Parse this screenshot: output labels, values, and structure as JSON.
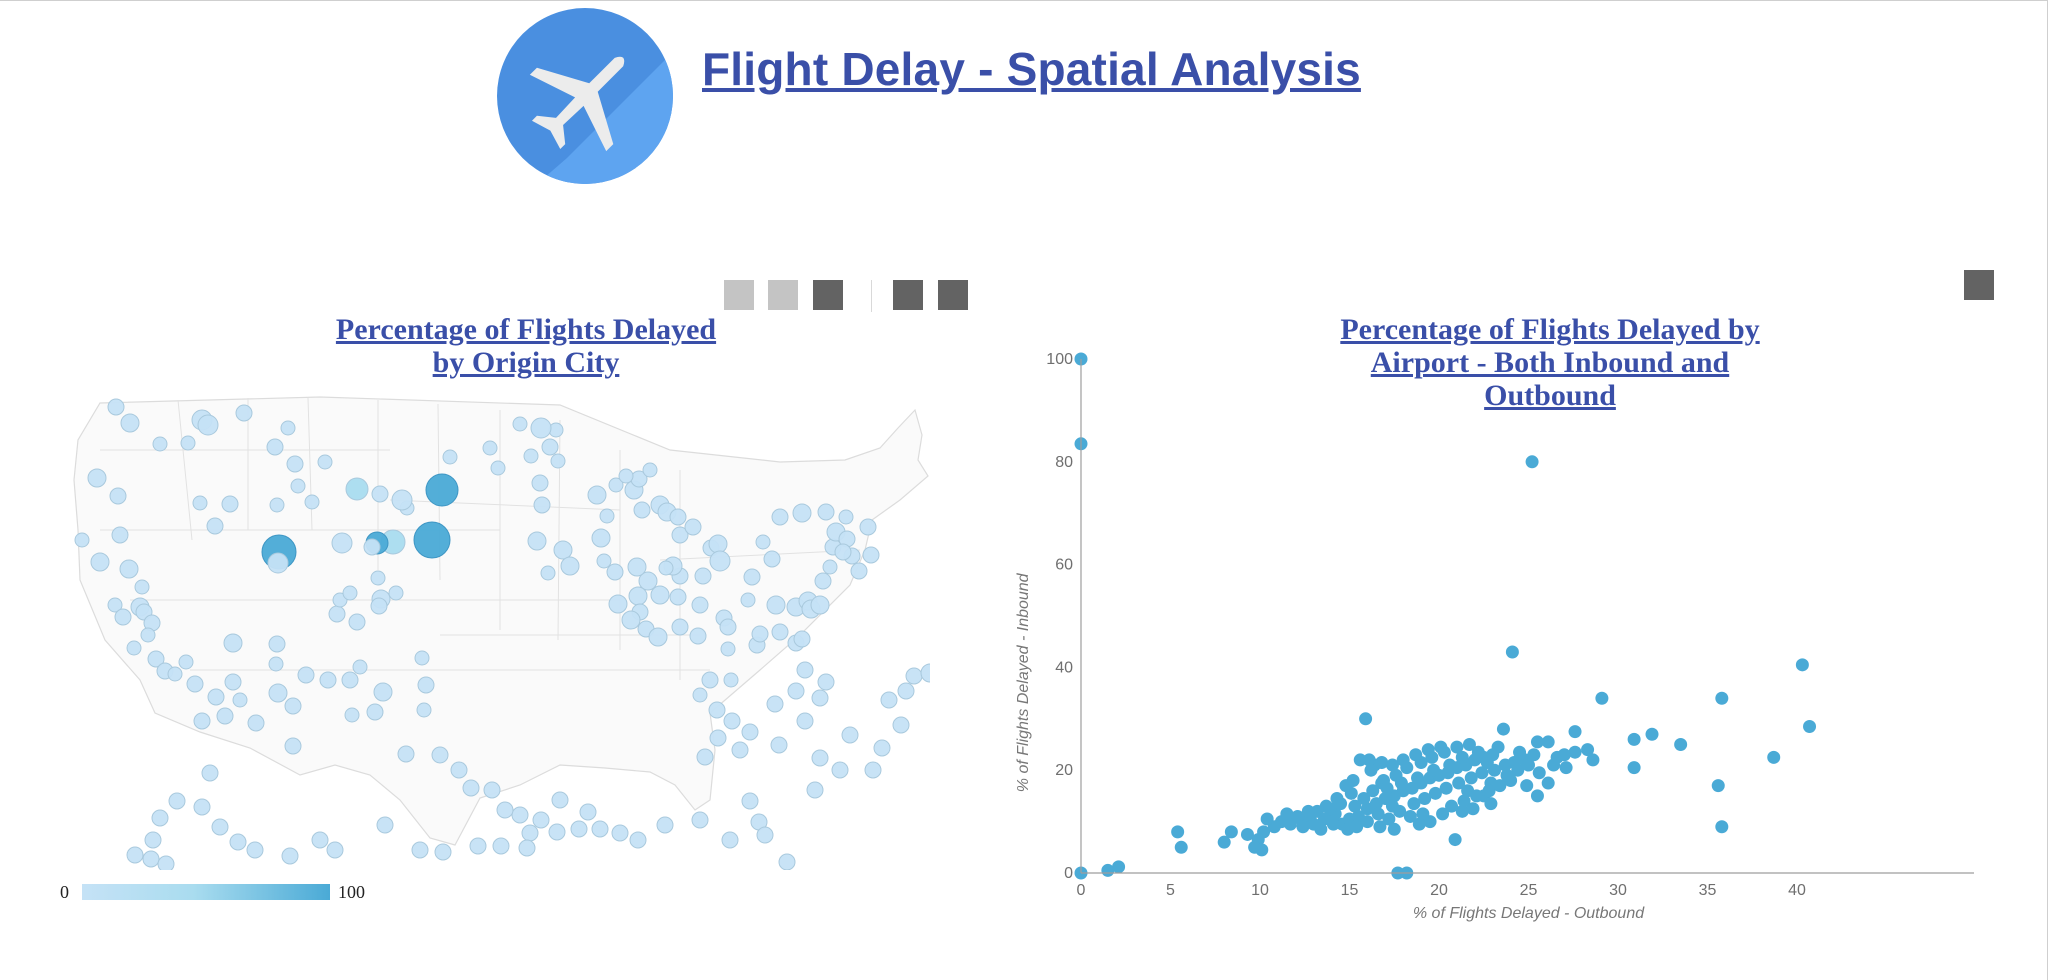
{
  "page": {
    "title": "Flight Delay - Spatial Analysis",
    "logo_icon": "airplane-icon",
    "logo_colors": [
      "#4a8fe0",
      "#5ea4f0"
    ]
  },
  "controls": {
    "squares": [
      "light",
      "light",
      "dark",
      "dark",
      "dark"
    ],
    "right_square": "dark"
  },
  "map_chart": {
    "title_line1": "Percentage of Flights Delayed",
    "title_line2": "by Origin City",
    "legend_min": "0",
    "legend_max": "100",
    "colors": {
      "low": "#c5e2f6",
      "mid": "#a9dcef",
      "high": "#4aaad6"
    }
  },
  "scatter_title": {
    "line1": "Percentage of Flights Delayed by",
    "line2": "Airport - Both Inbound and",
    "line3": "Outbound"
  },
  "chart_data": {
    "type": "scatter",
    "title": "Percentage of Flights Delayed by Airport - Both Inbound and Outbound",
    "xlabel": "% of Flights Delayed - Outbound",
    "ylabel": "% of Flights Delayed - Inbound",
    "xlim": [
      0,
      50
    ],
    "ylim": [
      0,
      100
    ],
    "xticks": [
      0,
      5,
      10,
      15,
      20,
      25,
      30,
      35,
      40
    ],
    "yticks": [
      0,
      20,
      40,
      60,
      80,
      100
    ],
    "grid": false,
    "color": "#4aaad6",
    "points": [
      [
        0,
        100
      ],
      [
        0,
        83.5
      ],
      [
        0,
        0
      ],
      [
        25.2,
        80
      ],
      [
        24.1,
        43
      ],
      [
        15.9,
        30
      ],
      [
        29.1,
        34
      ],
      [
        35.8,
        34
      ],
      [
        40.3,
        40.5
      ],
      [
        40.7,
        28.5
      ],
      [
        38.7,
        22.5
      ],
      [
        31.9,
        27
      ],
      [
        30.9,
        26
      ],
      [
        33.5,
        25
      ],
      [
        30.9,
        20.5
      ],
      [
        35.6,
        17
      ],
      [
        35.8,
        9
      ],
      [
        27.1,
        20.5
      ],
      [
        27.6,
        23.5
      ],
      [
        27.6,
        27.5
      ],
      [
        26.1,
        25.5
      ],
      [
        25.5,
        25.5
      ],
      [
        23.6,
        28
      ],
      [
        24.5,
        23.5
      ],
      [
        26.6,
        22.5
      ],
      [
        25.6,
        19.5
      ],
      [
        26.1,
        17.5
      ],
      [
        25.5,
        15
      ],
      [
        24.9,
        17
      ],
      [
        22.9,
        17.5
      ],
      [
        22.5,
        15
      ],
      [
        21.6,
        16
      ],
      [
        21.3,
        12
      ],
      [
        20.9,
        6.5
      ],
      [
        19.5,
        10
      ],
      [
        18.2,
        0
      ],
      [
        17.7,
        0
      ],
      [
        17.4,
        13
      ],
      [
        16.8,
        17.5
      ],
      [
        16.4,
        21
      ],
      [
        16.1,
        22
      ],
      [
        15.6,
        22
      ],
      [
        15.2,
        18
      ],
      [
        14.8,
        17
      ],
      [
        14.3,
        14.5
      ],
      [
        13.7,
        13
      ],
      [
        13.2,
        12
      ],
      [
        12.8,
        11
      ],
      [
        12.3,
        10.5
      ],
      [
        11.7,
        9.5
      ],
      [
        11.2,
        10
      ],
      [
        10.8,
        9
      ],
      [
        10.4,
        10.5
      ],
      [
        10.2,
        8
      ],
      [
        9.9,
        6.5
      ],
      [
        9.7,
        5
      ],
      [
        10.1,
        4.5
      ],
      [
        9.3,
        7.5
      ],
      [
        8.4,
        8
      ],
      [
        8.0,
        6
      ],
      [
        5.6,
        5
      ],
      [
        5.4,
        8
      ],
      [
        1.5,
        0.5
      ],
      [
        2.1,
        1.2
      ],
      [
        14.6,
        9.5
      ],
      [
        15.0,
        10.5
      ],
      [
        15.5,
        11
      ],
      [
        16.0,
        12.5
      ],
      [
        16.5,
        13.5
      ],
      [
        17.0,
        14.5
      ],
      [
        17.5,
        15
      ],
      [
        18.0,
        16
      ],
      [
        18.5,
        16.5
      ],
      [
        19.0,
        17.5
      ],
      [
        19.5,
        18.5
      ],
      [
        20.0,
        19
      ],
      [
        20.5,
        19.5
      ],
      [
        21.0,
        20.5
      ],
      [
        21.5,
        21
      ],
      [
        22.0,
        22
      ],
      [
        22.5,
        22.5
      ],
      [
        23.0,
        23
      ],
      [
        18.2,
        20.5
      ],
      [
        17.6,
        19
      ],
      [
        16.9,
        18
      ],
      [
        16.3,
        16
      ],
      [
        15.8,
        14.5
      ],
      [
        15.3,
        13
      ],
      [
        14.2,
        11.5
      ],
      [
        13.6,
        10.5
      ],
      [
        13.0,
        9.5
      ],
      [
        12.4,
        9
      ],
      [
        17.8,
        12
      ],
      [
        18.6,
        13.5
      ],
      [
        19.2,
        14.5
      ],
      [
        19.8,
        15.5
      ],
      [
        20.4,
        16.5
      ],
      [
        21.1,
        17.5
      ],
      [
        21.8,
        18.5
      ],
      [
        22.4,
        19.5
      ],
      [
        23.1,
        20
      ],
      [
        23.7,
        21
      ],
      [
        24.2,
        21.5
      ],
      [
        24.8,
        22
      ],
      [
        25.3,
        23
      ],
      [
        19.0,
        21.5
      ],
      [
        19.6,
        22.5
      ],
      [
        20.3,
        23.5
      ],
      [
        21.0,
        24.5
      ],
      [
        21.7,
        25
      ],
      [
        18.4,
        11
      ],
      [
        17.2,
        10.5
      ],
      [
        16.6,
        11.5
      ],
      [
        16.0,
        10
      ],
      [
        15.4,
        9
      ],
      [
        14.9,
        8.5
      ],
      [
        14.1,
        9.5
      ],
      [
        13.4,
        8.5
      ],
      [
        20.7,
        13
      ],
      [
        21.4,
        14
      ],
      [
        22.1,
        15
      ],
      [
        22.8,
        16
      ],
      [
        23.4,
        17
      ],
      [
        24.0,
        18
      ],
      [
        17.1,
        16.5
      ],
      [
        17.9,
        17.5
      ],
      [
        18.8,
        18.5
      ],
      [
        19.7,
        20
      ],
      [
        20.6,
        21
      ],
      [
        21.3,
        22.5
      ],
      [
        22.2,
        23.5
      ],
      [
        12.7,
        12
      ],
      [
        12.1,
        11
      ],
      [
        11.5,
        11.5
      ],
      [
        16.2,
        20
      ],
      [
        16.8,
        21.5
      ],
      [
        17.4,
        21
      ],
      [
        18.0,
        22
      ],
      [
        18.7,
        23
      ],
      [
        19.4,
        24
      ],
      [
        20.1,
        24.5
      ],
      [
        15.1,
        15.5
      ],
      [
        14.5,
        13.5
      ],
      [
        13.9,
        12.5
      ],
      [
        20.2,
        11.5
      ],
      [
        19.1,
        11.5
      ],
      [
        18.9,
        9.5
      ],
      [
        17.5,
        8.5
      ],
      [
        16.7,
        9
      ],
      [
        22.7,
        21.5
      ],
      [
        23.3,
        24.5
      ],
      [
        24.4,
        20
      ],
      [
        25.0,
        21
      ],
      [
        26.4,
        21
      ],
      [
        27.0,
        23
      ],
      [
        23.8,
        19
      ],
      [
        22.9,
        13.5
      ],
      [
        21.9,
        12.5
      ],
      [
        28.3,
        24
      ],
      [
        28.6,
        22
      ]
    ]
  }
}
